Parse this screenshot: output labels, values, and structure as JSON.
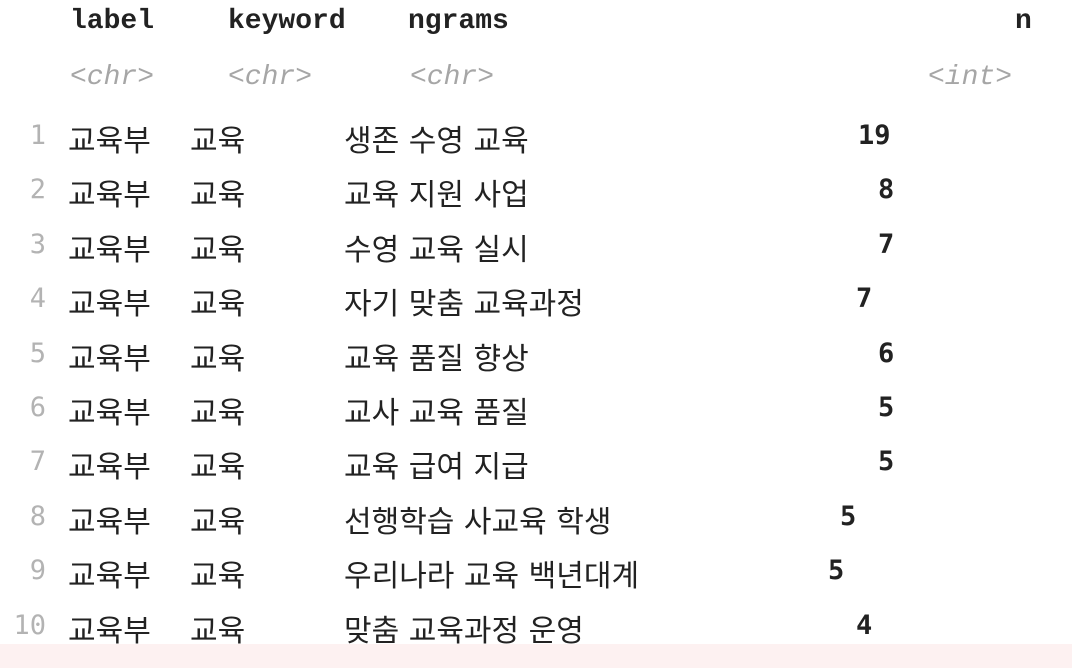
{
  "columns": {
    "names": [
      "label",
      "keyword",
      "ngrams",
      "n"
    ],
    "types": [
      "<chr>",
      "<chr>",
      "<chr>",
      "<int>"
    ]
  },
  "rows": [
    {
      "idx": "1",
      "label": "교육부",
      "keyword": "교육",
      "ngrams": "생존 수영 교육",
      "n": "19"
    },
    {
      "idx": "2",
      "label": "교육부",
      "keyword": "교육",
      "ngrams": "교육 지원 사업",
      "n": "8"
    },
    {
      "idx": "3",
      "label": "교육부",
      "keyword": "교육",
      "ngrams": "수영 교육 실시",
      "n": "7"
    },
    {
      "idx": "4",
      "label": "교육부",
      "keyword": "교육",
      "ngrams": "자기 맞춤 교육과정",
      "n": "7"
    },
    {
      "idx": "5",
      "label": "교육부",
      "keyword": "교육",
      "ngrams": "교육 품질 향상",
      "n": "6"
    },
    {
      "idx": "6",
      "label": "교육부",
      "keyword": "교육",
      "ngrams": "교사 교육 품질",
      "n": "5"
    },
    {
      "idx": "7",
      "label": "교육부",
      "keyword": "교육",
      "ngrams": "교육 급여 지급",
      "n": "5"
    },
    {
      "idx": "8",
      "label": "교육부",
      "keyword": "교육",
      "ngrams": "선행학습 사교육 학생",
      "n": "5"
    },
    {
      "idx": "9",
      "label": "교육부",
      "keyword": "교육",
      "ngrams": "우리나라 교육 백년대계",
      "n": "5"
    },
    {
      "idx": "10",
      "label": "교육부",
      "keyword": "교육",
      "ngrams": "맞춤 교육과정 운영",
      "n": "4"
    }
  ]
}
